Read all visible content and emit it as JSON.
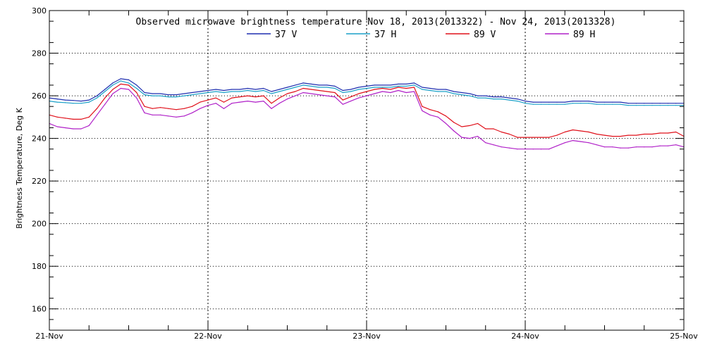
{
  "chart_data": {
    "type": "line",
    "title": "Observed microwave brightness temperature Nov 18, 2013(2013322) - Nov 24, 2013(2013328)",
    "ylabel": "Brightness Temperature, Deg K",
    "xlabel": "",
    "ylim": [
      150,
      300
    ],
    "yticks": [
      160,
      180,
      200,
      220,
      240,
      260,
      280,
      300
    ],
    "xlim": [
      0,
      4
    ],
    "xtick_labels": [
      "21-Nov",
      "22-Nov",
      "23-Nov",
      "24-Nov",
      "25-Nov"
    ],
    "grid": true,
    "legend_position": "top-center",
    "x": [
      0.0,
      0.05,
      0.1,
      0.15,
      0.2,
      0.25,
      0.3,
      0.35,
      0.4,
      0.45,
      0.5,
      0.55,
      0.6,
      0.65,
      0.7,
      0.75,
      0.8,
      0.85,
      0.9,
      0.95,
      1.0,
      1.05,
      1.1,
      1.15,
      1.2,
      1.25,
      1.3,
      1.35,
      1.4,
      1.45,
      1.5,
      1.55,
      1.6,
      1.65,
      1.7,
      1.75,
      1.8,
      1.85,
      1.9,
      1.95,
      2.0,
      2.05,
      2.1,
      2.15,
      2.2,
      2.25,
      2.3,
      2.35,
      2.4,
      2.45,
      2.5,
      2.55,
      2.6,
      2.65,
      2.7,
      2.75,
      2.8,
      2.85,
      2.9,
      2.95,
      3.0,
      3.05,
      3.1,
      3.15,
      3.2,
      3.25,
      3.3,
      3.35,
      3.4,
      3.45,
      3.5,
      3.55,
      3.6,
      3.65,
      3.7,
      3.75,
      3.8,
      3.85,
      3.9,
      3.95,
      4.0
    ],
    "series": [
      {
        "name": "37 V",
        "color": "#1f2fb0",
        "values": [
          259,
          258.5,
          258,
          257.8,
          257.5,
          258,
          260,
          263,
          266,
          268,
          267.5,
          265,
          261.5,
          261,
          261,
          260.5,
          260.5,
          261,
          261.5,
          262,
          262.5,
          263,
          262.5,
          263,
          263,
          263.5,
          263,
          263.5,
          262,
          263,
          264,
          265,
          266,
          265.5,
          265,
          265,
          264.5,
          262.5,
          263,
          264,
          264.5,
          265,
          265,
          265,
          265.5,
          265.5,
          266,
          264,
          263.5,
          263,
          263,
          262,
          261.5,
          261,
          260,
          260,
          259.5,
          259.5,
          259,
          258.5,
          257.5,
          257,
          257,
          257,
          257,
          257,
          257.5,
          257.5,
          257.5,
          257,
          257,
          257,
          257,
          256.5,
          256.5,
          256.5,
          256.5,
          256.5,
          256.5,
          256.5,
          256.5
        ]
      },
      {
        "name": "37 H",
        "color": "#1aa0c8",
        "values": [
          257.5,
          257,
          256.8,
          256.5,
          256.5,
          257,
          259,
          262,
          265,
          267,
          266,
          263.5,
          260.5,
          260,
          260,
          259.5,
          259.5,
          260,
          260.5,
          261,
          261.5,
          262,
          261.5,
          262,
          262,
          262.5,
          262,
          262.5,
          261,
          262,
          263,
          264,
          265,
          264.5,
          264,
          264,
          263.5,
          261.5,
          262,
          263,
          263.5,
          264,
          264,
          264,
          264.5,
          264.5,
          265,
          263,
          262.5,
          262,
          262,
          261,
          260.5,
          260,
          259,
          259,
          258.5,
          258.5,
          258,
          257.5,
          256.5,
          256,
          256,
          256,
          256,
          256,
          256.5,
          256.5,
          256.5,
          256,
          256,
          256,
          256,
          255.5,
          255.5,
          255.5,
          255.5,
          255.5,
          255.5,
          255.5,
          255.5
        ]
      },
      {
        "name": "89 V",
        "color": "#e0101a",
        "values": [
          251,
          250,
          249.5,
          249,
          249,
          250,
          254,
          259,
          263,
          265.5,
          265,
          261.5,
          255,
          254,
          254.5,
          254,
          253.5,
          254,
          255,
          257,
          258,
          259,
          257,
          259,
          259.5,
          260,
          259.5,
          260,
          256.5,
          259,
          261,
          262,
          263.5,
          263,
          262.5,
          262,
          261.5,
          258,
          259.5,
          261,
          262,
          263,
          263.5,
          263,
          264,
          263.5,
          264,
          255,
          253.5,
          252.5,
          250.5,
          247.5,
          245.5,
          246,
          247,
          244.5,
          244.5,
          243,
          242,
          240.5,
          240.5,
          240.5,
          240.5,
          240.5,
          241.5,
          243,
          244,
          243.5,
          243,
          242,
          241.5,
          241,
          241,
          241.5,
          241.5,
          242,
          242,
          242.5,
          242.5,
          243,
          241
        ]
      },
      {
        "name": "89 H",
        "color": "#b020c8",
        "values": [
          247,
          245.5,
          245,
          244.5,
          244.5,
          246,
          251,
          256,
          261,
          263.5,
          263,
          259,
          252,
          251,
          251,
          250.5,
          250,
          250.5,
          252,
          254,
          255.5,
          256.5,
          254,
          256.5,
          257,
          257.5,
          257,
          257.5,
          254,
          256.5,
          258.5,
          260,
          261.5,
          261,
          260.5,
          260,
          259.5,
          256,
          257.5,
          259,
          260,
          261,
          262,
          261.5,
          262.5,
          261.5,
          262,
          253,
          251,
          250,
          247,
          243.5,
          240.5,
          240,
          241,
          238,
          237,
          236,
          235.5,
          235,
          235,
          235,
          235,
          235,
          236.5,
          238,
          239,
          238.5,
          238,
          237,
          236,
          236,
          235.5,
          235.5,
          236,
          236,
          236,
          236.5,
          236.5,
          237,
          236
        ]
      }
    ]
  }
}
